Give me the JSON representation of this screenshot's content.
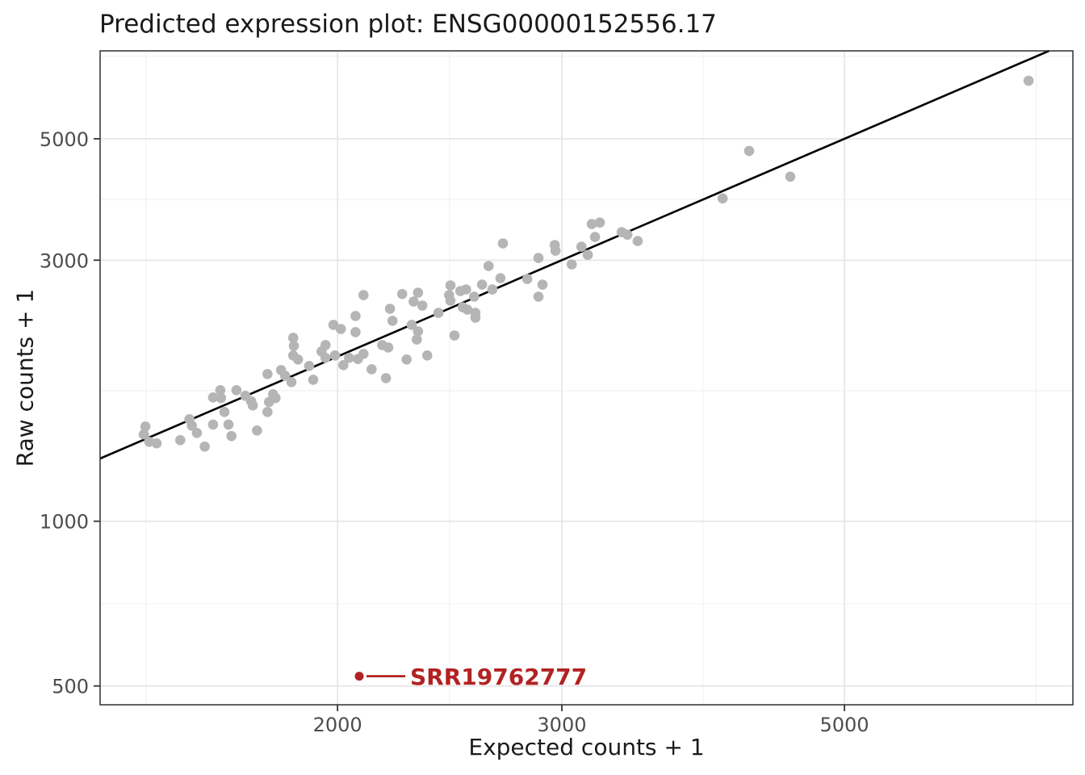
{
  "colors": {
    "background": "#ffffff",
    "panel_border": "#2e2e2e",
    "grid_major": "#e4e4e4",
    "grid_minor": "#f1f1f1",
    "tick_mark": "#333333",
    "tick_label": "#4d4d4d",
    "text": "#1a1a1a",
    "point": "#b5b5b5",
    "fit_line": "#000000",
    "highlight": "#b22222"
  },
  "chart_data": {
    "type": "scatter",
    "title": "Predicted expression plot: ENSG00000152556.17",
    "xlabel": "Expected counts + 1",
    "ylabel": "Raw counts + 1",
    "x_scale": "log10",
    "y_scale": "log10",
    "xlim": [
      1302,
      7557
    ],
    "ylim": [
      462,
      7238
    ],
    "x_ticks": [
      2000,
      3000,
      5000
    ],
    "x_tick_labels": [
      "2000",
      "3000",
      "5000"
    ],
    "y_ticks": [
      500,
      1000,
      3000,
      5000
    ],
    "y_tick_labels": [
      "500",
      "1000",
      "3000",
      "5000"
    ],
    "x_minor_gridlines": [
      1414,
      2449,
      3873,
      7071
    ],
    "y_minor_gridlines": [
      707,
      1732,
      3873,
      7071
    ],
    "grid": "major+minor",
    "legend": "none",
    "reference_line": {
      "type": "identity",
      "equation": "y = x",
      "start": 1302,
      "end": 7238
    },
    "series": [
      {
        "name": "samples",
        "marker": "circle",
        "color": "#b5b5b5",
        "points": [
          [
            1413,
            1490
          ],
          [
            1409,
            1441
          ],
          [
            1423,
            1397
          ],
          [
            1442,
            1388
          ],
          [
            1505,
            1407
          ],
          [
            1530,
            1536
          ],
          [
            1537,
            1495
          ],
          [
            1551,
            1450
          ],
          [
            1573,
            1369
          ],
          [
            1597,
            1502
          ],
          [
            1618,
            1736
          ],
          [
            1597,
            1684
          ],
          [
            1620,
            1680
          ],
          [
            1630,
            1584
          ],
          [
            1642,
            1502
          ],
          [
            1651,
            1431
          ],
          [
            1666,
            1736
          ],
          [
            1693,
            1695
          ],
          [
            1711,
            1656
          ],
          [
            1716,
            1628
          ],
          [
            1729,
            1465
          ],
          [
            1762,
            1858
          ],
          [
            1767,
            1652
          ],
          [
            1762,
            1584
          ],
          [
            1780,
            1707
          ],
          [
            1788,
            1680
          ],
          [
            1806,
            1889
          ],
          [
            1819,
            1845
          ],
          [
            1840,
            1796
          ],
          [
            1846,
            2009
          ],
          [
            1862,
            1975
          ],
          [
            1900,
            1922
          ],
          [
            1914,
            1814
          ],
          [
            1943,
            2043
          ],
          [
            1957,
            1989
          ],
          [
            1991,
            2009
          ],
          [
            2021,
            1929
          ],
          [
            2042,
            1989
          ],
          [
            2127,
            1896
          ],
          [
            1985,
            2285
          ],
          [
            2012,
            2246
          ],
          [
            1957,
            2099
          ],
          [
            1846,
            2164
          ],
          [
            1848,
            2092
          ],
          [
            2096,
            2590
          ],
          [
            2066,
            2372
          ],
          [
            2066,
            2216
          ],
          [
            2096,
            2023
          ],
          [
            2075,
            1979
          ],
          [
            2168,
            2099
          ],
          [
            2192,
            2078
          ],
          [
            2183,
            1826
          ],
          [
            2199,
            2445
          ],
          [
            2209,
            2324
          ],
          [
            2248,
            2602
          ],
          [
            2266,
            1975
          ],
          [
            2295,
            2521
          ],
          [
            2287,
            2285
          ],
          [
            2313,
            2224
          ],
          [
            2308,
            2149
          ],
          [
            2313,
            2617
          ],
          [
            2331,
            2478
          ],
          [
            2352,
            2009
          ],
          [
            2400,
            2403
          ],
          [
            2453,
            2698
          ],
          [
            2447,
            2590
          ],
          [
            2453,
            2530
          ],
          [
            2497,
            2634
          ],
          [
            2508,
            2462
          ],
          [
            2523,
            2652
          ],
          [
            2529,
            2436
          ],
          [
            2560,
            2573
          ],
          [
            2566,
            2403
          ],
          [
            2566,
            2355
          ],
          [
            2471,
            2186
          ],
          [
            2597,
            2706
          ],
          [
            2646,
            2652
          ],
          [
            2628,
            2926
          ],
          [
            2685,
            2781
          ],
          [
            2818,
            2771
          ],
          [
            2876,
            2573
          ],
          [
            2897,
            2706
          ],
          [
            2697,
            3219
          ],
          [
            2876,
            3027
          ],
          [
            2962,
            3197
          ],
          [
            2966,
            3122
          ],
          [
            3054,
            2947
          ],
          [
            3108,
            3175
          ],
          [
            3144,
            3068
          ],
          [
            3167,
            3491
          ],
          [
            3213,
            3514
          ],
          [
            3185,
            3307
          ],
          [
            3343,
            3375
          ],
          [
            3377,
            3340
          ],
          [
            3441,
            3251
          ],
          [
            4012,
            3890
          ],
          [
            4209,
            4752
          ],
          [
            4534,
            4264
          ],
          [
            6975,
            6383
          ]
        ]
      },
      {
        "name": "highlighted-sample",
        "marker": "circle",
        "color": "#b22222",
        "label": "SRR19762777",
        "points": [
          [
            2080,
            521
          ]
        ]
      }
    ],
    "annotation": {
      "text": "SRR19762777",
      "x": 2080,
      "y": 521
    }
  }
}
